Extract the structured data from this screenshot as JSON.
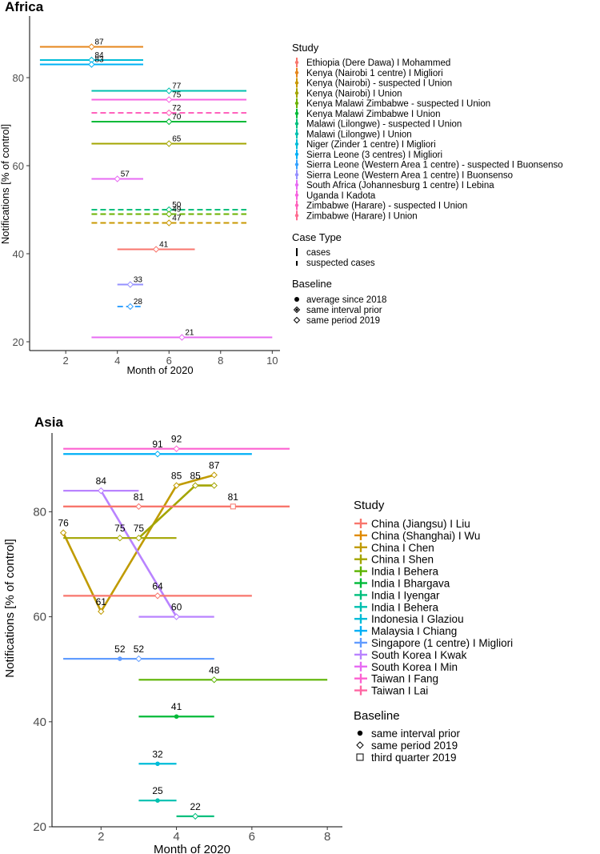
{
  "chart_data": [
    {
      "type": "interval-line",
      "title": "Africa",
      "xlabel": "Month of 2020",
      "ylabel": "Notifications [% of control]",
      "xlim": [
        0.6,
        10.3
      ],
      "ylim": [
        18,
        94
      ],
      "xticks": [
        2,
        4,
        6,
        8,
        10
      ],
      "yticks": [
        20,
        40,
        60,
        80
      ],
      "legend": {
        "study_title": "Study",
        "studies": [
          {
            "label": "Ethiopia (Dere Dawa) I Mohammed",
            "color": "#f8766d"
          },
          {
            "label": "Kenya (Nairobi 1 centre) I Migliori",
            "color": "#e6861b"
          },
          {
            "label": "Kenya (Nairobi) - suspected I Union",
            "color": "#c99800"
          },
          {
            "label": "Kenya (Nairobi) I Union",
            "color": "#a3a500"
          },
          {
            "label": "Kenya Malawi Zimbabwe - suspected I Union",
            "color": "#6bb100"
          },
          {
            "label": "Kenya Malawi Zimbabwe I Union",
            "color": "#00ba38"
          },
          {
            "label": "Malawi (Lilongwe) - suspected I Union",
            "color": "#00bf7d"
          },
          {
            "label": "Malawi (Lilongwe) I Union",
            "color": "#00c0af"
          },
          {
            "label": "Niger (Zinder 1 centre) I Migliori",
            "color": "#00bcd8"
          },
          {
            "label": "Sierra Leone (3 centres) I Migliori",
            "color": "#00b0f6"
          },
          {
            "label": "Sierra Leone (Western Area 1 centre) - suspected I Buonsenso",
            "color": "#35a2ff"
          },
          {
            "label": "Sierra Leone (Western Area 1 centre) I Buonsenso",
            "color": "#9590ff"
          },
          {
            "label": "South Africa (Johannesburg 1 centre) I Lebina",
            "color": "#e76bf3"
          },
          {
            "label": "Uganda I Kadota",
            "color": "#f763e0"
          },
          {
            "label": "Zimbabwe (Harare) - suspected I Union",
            "color": "#ff62bc"
          },
          {
            "label": "Zimbabwe (Harare) I Union",
            "color": "#ff6c90"
          }
        ],
        "case_title": "Case Type",
        "case_types": [
          "cases",
          "suspected cases"
        ],
        "baseline_title": "Baseline",
        "baselines": [
          "average since 2018",
          "same interval prior",
          "same period 2019"
        ]
      },
      "series": [
        {
          "color": "#e6861b",
          "x0": 1,
          "x1": 5,
          "xm": 3,
          "y": 87,
          "label": "87",
          "marker": "diamond",
          "dash": false
        },
        {
          "color": "#00bcd8",
          "x0": 1,
          "x1": 5,
          "xm": 3,
          "y": 84,
          "label": "84",
          "marker": "diamond",
          "dash": false
        },
        {
          "color": "#00b0f6",
          "x0": 1,
          "x1": 5,
          "xm": 3,
          "y": 83,
          "label": "83",
          "marker": "diamond",
          "dash": false
        },
        {
          "color": "#00c0af",
          "x0": 3,
          "x1": 9,
          "xm": 6,
          "y": 77,
          "label": "77",
          "marker": "diamond",
          "dash": false
        },
        {
          "color": "#f763e0",
          "x0": 3,
          "x1": 9,
          "xm": 6,
          "y": 75,
          "label": "75",
          "marker": "diamond",
          "dash": false
        },
        {
          "color": "#ff62bc",
          "x0": 3,
          "x1": 9,
          "xm": 6,
          "y": 72,
          "label": "72",
          "marker": "diamond",
          "dash": true
        },
        {
          "color": "#00ba38",
          "x0": 3,
          "x1": 9,
          "xm": 6,
          "y": 70,
          "label": "70",
          "marker": "diamond",
          "dash": false
        },
        {
          "color": "#a3a500",
          "x0": 3,
          "x1": 9,
          "xm": 6,
          "y": 65,
          "label": "65",
          "marker": "diamond",
          "dash": false
        },
        {
          "color": "#e76bf3",
          "x0": 3,
          "x1": 5,
          "xm": 4,
          "y": 57,
          "label": "57",
          "marker": "diamond",
          "dash": false
        },
        {
          "color": "#00bf7d",
          "x0": 3,
          "x1": 9,
          "xm": 6,
          "y": 50,
          "label": "50",
          "marker": "diamond",
          "dash": true
        },
        {
          "color": "#6bb100",
          "x0": 3,
          "x1": 9,
          "xm": 6,
          "y": 49,
          "label": "49",
          "marker": "diamond",
          "dash": true
        },
        {
          "color": "#c99800",
          "x0": 3,
          "x1": 9,
          "xm": 6,
          "y": 47,
          "label": "47",
          "marker": "diamond",
          "dash": true
        },
        {
          "color": "#f8766d",
          "x0": 4,
          "x1": 7,
          "xm": 5.5,
          "y": 41,
          "label": "41",
          "marker": "diamond",
          "dash": false
        },
        {
          "color": "#9590ff",
          "x0": 4,
          "x1": 5,
          "xm": 4.5,
          "y": 33,
          "label": "33",
          "marker": "diamond",
          "dash": false
        },
        {
          "color": "#35a2ff",
          "x0": 4,
          "x1": 5,
          "xm": 4.5,
          "y": 28,
          "label": "28",
          "marker": "diamond",
          "dash": true
        },
        {
          "color": "#e76bf3",
          "x0": 3,
          "x1": 10,
          "xm": 6.5,
          "y": 21,
          "label": "21",
          "marker": "diamond",
          "dash": false
        }
      ]
    },
    {
      "type": "interval-line",
      "title": "Asia",
      "xlabel": "Month of 2020",
      "ylabel": "Notifications [% of control]",
      "xlim": [
        0.7,
        8.4
      ],
      "ylim": [
        20,
        95
      ],
      "xticks": [
        2,
        4,
        6,
        8
      ],
      "yticks": [
        20,
        40,
        60,
        80
      ],
      "legend": {
        "study_title": "Study",
        "studies": [
          {
            "label": "China (Jiangsu) I Liu",
            "color": "#f8766d"
          },
          {
            "label": "China (Shanghai) I Wu",
            "color": "#e08b00"
          },
          {
            "label": "China I Chen",
            "color": "#c09b00"
          },
          {
            "label": "China I Shen",
            "color": "#a3a500"
          },
          {
            "label": "India I Behera",
            "color": "#5bb300"
          },
          {
            "label": "India I Bhargava",
            "color": "#00ba38"
          },
          {
            "label": "India I Iyengar",
            "color": "#00bf7d"
          },
          {
            "label": "India I Behera",
            "color": "#00c0af"
          },
          {
            "label": "Indonesia I Glaziou",
            "color": "#00bcd8"
          },
          {
            "label": "Malaysia I Chiang",
            "color": "#00b0f6"
          },
          {
            "label": "Singapore (1 centre) I Migliori",
            "color": "#619cff"
          },
          {
            "label": "South Korea I Kwak",
            "color": "#b983ff"
          },
          {
            "label": "South Korea I Min",
            "color": "#e76bf3"
          },
          {
            "label": "Taiwan I Fang",
            "color": "#fd61d1"
          },
          {
            "label": "Taiwan I Lai",
            "color": "#ff67a4"
          }
        ],
        "baseline_title": "Baseline",
        "baselines": [
          "same interval prior",
          "same period 2019",
          "third quarter 2019"
        ]
      },
      "series": [
        {
          "color": "#fd61d1",
          "x0": 1,
          "x1": 7,
          "xm": 4,
          "y": 92,
          "label": "92",
          "marker": "diamond"
        },
        {
          "color": "#00b0f6",
          "x0": 1,
          "x1": 6,
          "xm": 3.5,
          "y": 91,
          "label": "91",
          "marker": "diamond"
        },
        {
          "color": "#b983ff",
          "x0": 1,
          "x1": 3,
          "xm": 2,
          "y": 84,
          "label": "84",
          "marker": "diamond"
        },
        {
          "color": "#f8766d",
          "x0": 1,
          "x1": 7,
          "xm": 5.5,
          "y": 81,
          "label": "81",
          "marker": "square"
        },
        {
          "color": "#f8766d",
          "x0": 1,
          "x1": 7,
          "xm": 3,
          "y": 81,
          "label": "81",
          "marker": "diamond"
        },
        {
          "color": "#a3a500",
          "x0": 1,
          "x1": 4,
          "xm": 2.5,
          "y": 75,
          "label": "75",
          "marker": "diamond"
        },
        {
          "color": "#f8766d",
          "x0": 1,
          "x1": 6,
          "xm": 3.5,
          "y": 64,
          "label": "64",
          "marker": "diamond"
        },
        {
          "color": "#b983ff",
          "x0": 3,
          "x1": 5,
          "xm": 4,
          "y": 60,
          "label": "60",
          "marker": "diamond"
        },
        {
          "color": "#619cff",
          "x0": 1,
          "x1": 5,
          "xm": 2.5,
          "y": 52,
          "label": "52",
          "marker": "dot"
        },
        {
          "color": "#619cff",
          "x0": 1,
          "x1": 5,
          "xm": 3,
          "y": 52,
          "label": "52",
          "marker": "diamond"
        },
        {
          "color": "#5bb300",
          "x0": 3,
          "x1": 8,
          "xm": 5,
          "y": 48,
          "label": "48",
          "marker": "diamond"
        },
        {
          "color": "#00ba38",
          "x0": 3,
          "x1": 5,
          "xm": 4,
          "y": 41,
          "label": "41",
          "marker": "dot"
        },
        {
          "color": "#00bcd8",
          "x0": 3,
          "x1": 4,
          "xm": 3.5,
          "y": 32,
          "label": "32",
          "marker": "dot"
        },
        {
          "color": "#00c0af",
          "x0": 3,
          "x1": 4,
          "xm": 3.5,
          "y": 25,
          "label": "25",
          "marker": "dot"
        },
        {
          "color": "#00bf7d",
          "x0": 4,
          "x1": 5,
          "xm": 4.5,
          "y": 22,
          "label": "22",
          "marker": "diamond"
        }
      ],
      "paths": [
        {
          "color": "#c09b00",
          "points": [
            [
              1,
              76
            ],
            [
              2,
              61
            ],
            [
              4,
              85
            ],
            [
              5,
              87
            ]
          ],
          "labels": [
            "76",
            "61",
            "85",
            "87"
          ]
        },
        {
          "color": "#a3a500",
          "points": [
            [
              3,
              75
            ],
            [
              4.5,
              85
            ],
            [
              5,
              85
            ]
          ],
          "labels": [
            "75",
            "85",
            ""
          ]
        },
        {
          "color": "#b983ff",
          "points": [
            [
              2,
              84
            ],
            [
              4,
              60
            ]
          ],
          "labels": [
            "",
            ""
          ]
        }
      ]
    }
  ]
}
